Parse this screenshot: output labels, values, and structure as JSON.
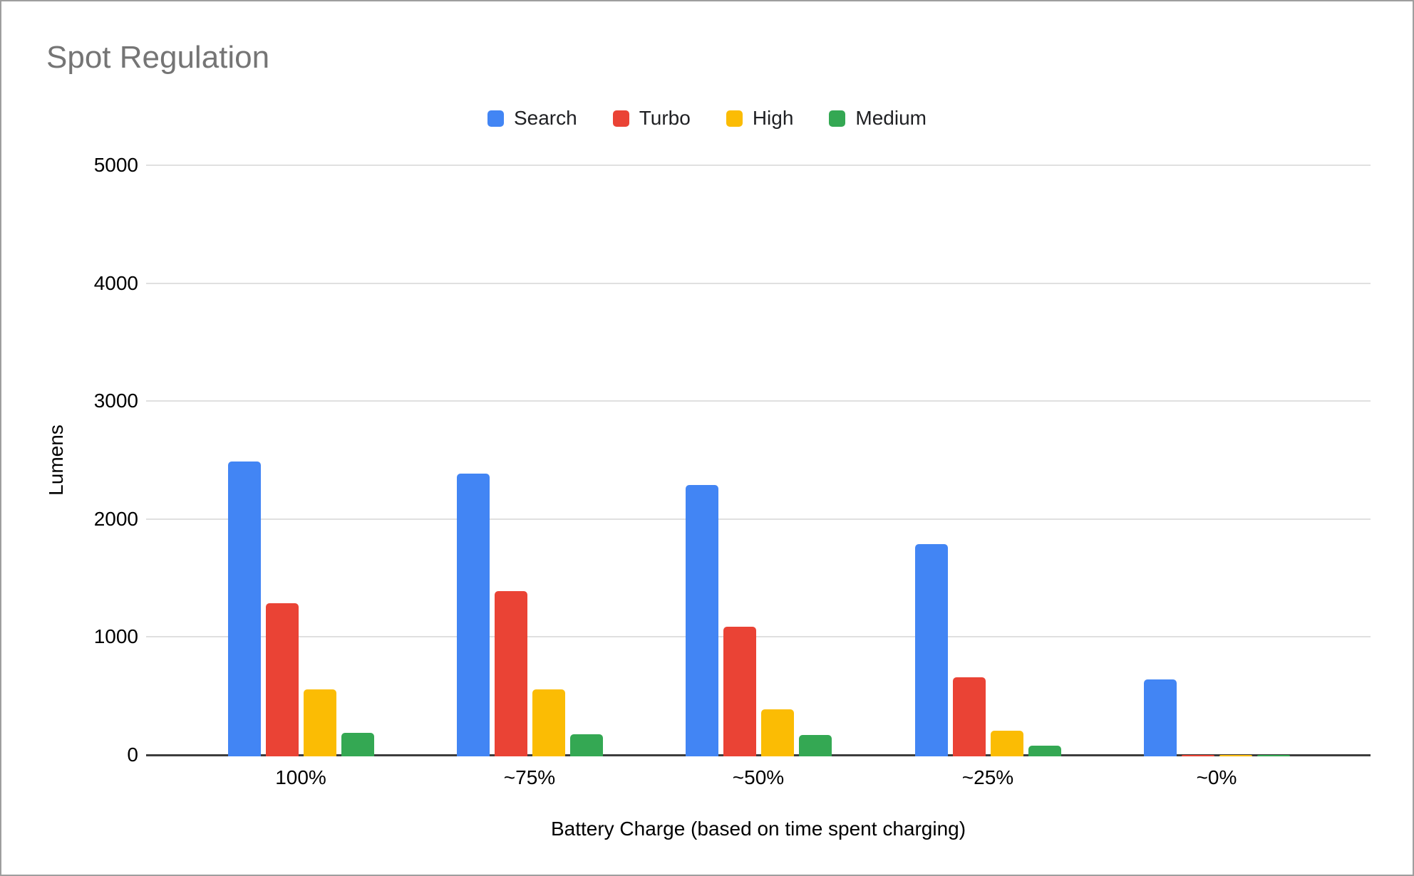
{
  "window": {
    "background": "#ffffff",
    "border_color": "#9e9e9e"
  },
  "chart_data": {
    "type": "bar",
    "title": "Spot Regulation",
    "title_color": "#757575",
    "xlabel": "Battery Charge (based on time spent charging)",
    "ylabel": "Lumens",
    "categories": [
      "100%",
      "~75%",
      "~50%",
      "~25%",
      "~0%"
    ],
    "series": [
      {
        "name": "Search",
        "color": "#4285F4",
        "values": [
          2500,
          2400,
          2300,
          1800,
          650
        ]
      },
      {
        "name": "Turbo",
        "color": "#EA4335",
        "values": [
          1300,
          1400,
          1100,
          670,
          15
        ]
      },
      {
        "name": "High",
        "color": "#FBBC04",
        "values": [
          570,
          570,
          400,
          220,
          15
        ]
      },
      {
        "name": "Medium",
        "color": "#34A853",
        "values": [
          200,
          190,
          180,
          90,
          10
        ]
      }
    ],
    "ylim": [
      0,
      5000
    ],
    "y_ticks": [
      0,
      1000,
      2000,
      3000,
      4000,
      5000
    ],
    "grid": "horizontal",
    "grid_color": "#e0e0e0",
    "axis_color": "#3c3c3c",
    "tick_label_color": "#000000",
    "legend_position": "top"
  }
}
